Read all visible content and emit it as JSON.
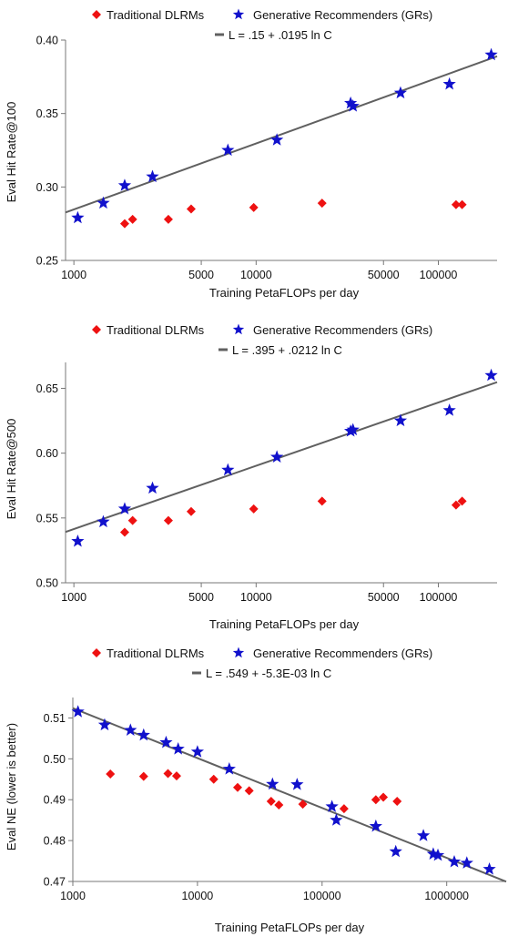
{
  "colors": {
    "dlrm": "#ee1111",
    "gr": "#1111cc",
    "fit": "#606060",
    "axis": "#777777"
  },
  "chart_data": [
    {
      "type": "scatter",
      "xscale": "log",
      "xlabel": "Training PetaFLOPs per day",
      "ylabel": "Eval Hit Rate@100",
      "xlim": [
        900,
        210000
      ],
      "ylim": [
        0.25,
        0.4
      ],
      "xticks": [
        1000,
        5000,
        10000,
        50000,
        100000
      ],
      "xtick_labels": [
        "1000",
        "5000",
        "10000",
        "50000",
        "100000"
      ],
      "yticks": [
        0.25,
        0.3,
        0.35,
        0.4
      ],
      "ytick_labels": [
        "0.25",
        "0.30",
        "0.35",
        "0.40"
      ],
      "legend": {
        "dlrm_label": "Traditional DLRMs",
        "gr_label": "Generative Recommenders (GRs)",
        "fit_label": "L = .15 + .0195 ln C"
      },
      "fit": {
        "intercept": 0.15,
        "slope": 0.0195
      },
      "series": [
        {
          "name": "Traditional DLRMs",
          "marker": "diamond",
          "x": [
            1900,
            2100,
            3300,
            4400,
            9700,
            23000,
            125000,
            135000
          ],
          "y": [
            0.275,
            0.278,
            0.278,
            0.285,
            0.286,
            0.289,
            0.288,
            0.288
          ]
        },
        {
          "name": "Generative Recommenders (GRs)",
          "marker": "star",
          "x": [
            1050,
            1450,
            1900,
            2700,
            7000,
            13000,
            33000,
            34000,
            62000,
            115000,
            195000
          ],
          "y": [
            0.279,
            0.289,
            0.301,
            0.307,
            0.325,
            0.332,
            0.357,
            0.355,
            0.364,
            0.37,
            0.39
          ]
        }
      ]
    },
    {
      "type": "scatter",
      "xscale": "log",
      "xlabel": "Training PetaFLOPs per day",
      "ylabel": "Eval Hit Rate@500",
      "xlim": [
        900,
        210000
      ],
      "ylim": [
        0.5,
        0.67
      ],
      "xticks": [
        1000,
        5000,
        10000,
        50000,
        100000
      ],
      "xtick_labels": [
        "1000",
        "5000",
        "10000",
        "50000",
        "100000"
      ],
      "yticks": [
        0.5,
        0.55,
        0.6,
        0.65
      ],
      "ytick_labels": [
        "0.50",
        "0.55",
        "0.60",
        "0.65"
      ],
      "legend": {
        "dlrm_label": "Traditional DLRMs",
        "gr_label": "Generative Recommenders (GRs)",
        "fit_label": "L = .395 + .0212 ln C"
      },
      "fit": {
        "intercept": 0.395,
        "slope": 0.0212
      },
      "series": [
        {
          "name": "Traditional DLRMs",
          "marker": "diamond",
          "x": [
            1900,
            2100,
            3300,
            4400,
            9700,
            23000,
            125000,
            135000
          ],
          "y": [
            0.539,
            0.548,
            0.548,
            0.555,
            0.557,
            0.563,
            0.56,
            0.563
          ]
        },
        {
          "name": "Generative Recommenders (GRs)",
          "marker": "star",
          "x": [
            1050,
            1450,
            1900,
            2700,
            7000,
            13000,
            33000,
            34000,
            62000,
            115000,
            195000
          ],
          "y": [
            0.532,
            0.547,
            0.557,
            0.573,
            0.587,
            0.597,
            0.617,
            0.618,
            0.625,
            0.633,
            0.66
          ]
        }
      ]
    },
    {
      "type": "scatter",
      "xscale": "log",
      "xlabel": "Training PetaFLOPs per day",
      "ylabel": "Eval NE (lower is better)",
      "xlim": [
        1000,
        3000000
      ],
      "ylim": [
        0.47,
        0.515
      ],
      "xticks": [
        1000,
        10000,
        100000,
        1000000
      ],
      "xtick_labels": [
        "1000",
        "10000",
        "100000",
        "1000000"
      ],
      "yticks": [
        0.47,
        0.48,
        0.49,
        0.5,
        0.51
      ],
      "ytick_labels": [
        "0.47",
        "0.48",
        "0.49",
        "0.50",
        "0.51"
      ],
      "legend": {
        "dlrm_label": "Traditional DLRMs",
        "gr_label": "Generative Recommenders (GRs)",
        "fit_label": "L = .549 + -5.3E-03 ln C"
      },
      "fit": {
        "intercept": 0.549,
        "slope": -0.0053
      },
      "series": [
        {
          "name": "Traditional DLRMs",
          "marker": "diamond",
          "x": [
            2000,
            3700,
            5800,
            6800,
            13500,
            21000,
            26000,
            39000,
            45000,
            70000,
            150000,
            270000,
            310000,
            400000
          ],
          "y": [
            0.4963,
            0.4957,
            0.4964,
            0.4958,
            0.495,
            0.493,
            0.4922,
            0.4896,
            0.4887,
            0.4889,
            0.4878,
            0.49,
            0.4906,
            0.4896
          ]
        },
        {
          "name": "Generative Recommenders (GRs)",
          "marker": "star",
          "x": [
            1100,
            1800,
            2900,
            3700,
            5600,
            7000,
            10000,
            18000,
            40000,
            63000,
            120000,
            130000,
            270000,
            390000,
            650000,
            780000,
            850000,
            1150000,
            1450000,
            2200000
          ],
          "y": [
            0.5115,
            0.5083,
            0.507,
            0.5058,
            0.504,
            0.5024,
            0.5017,
            0.4975,
            0.4938,
            0.4937,
            0.4883,
            0.485,
            0.4835,
            0.4773,
            0.4812,
            0.4767,
            0.4764,
            0.4748,
            0.4745,
            0.473
          ]
        }
      ]
    }
  ]
}
